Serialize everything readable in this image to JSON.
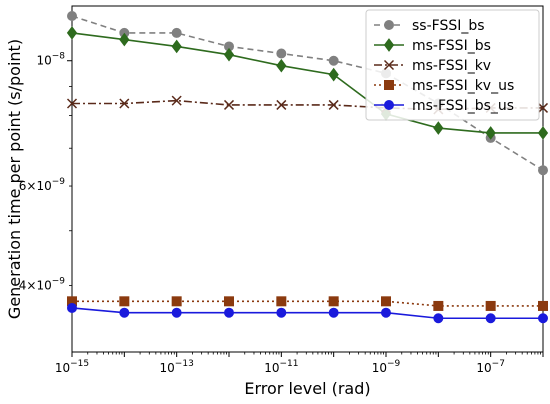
{
  "chart_data": {
    "type": "line",
    "title": "",
    "xlabel": "Error level (rad)",
    "ylabel": "Generation time per point (s/point)",
    "xscale": "log",
    "yscale": "log",
    "xlim": [
      1e-15,
      1e-06
    ],
    "ylim": [
      3.05e-09,
      1.25e-08
    ],
    "grid": false,
    "legend_position": "top-right",
    "x": [
      1e-15,
      1e-14,
      1e-13,
      1e-12,
      1e-11,
      1e-10,
      1e-09,
      1e-08,
      1e-07,
      1e-06
    ],
    "x_ticks": [
      {
        "base": "10",
        "exp": "−15",
        "value": 1e-15
      },
      {
        "base": "10",
        "exp": "−13",
        "value": 1e-13
      },
      {
        "base": "10",
        "exp": "−11",
        "value": 1e-11
      },
      {
        "base": "10",
        "exp": "−9",
        "value": 1e-09
      },
      {
        "base": "10",
        "exp": "−7",
        "value": 1e-07
      }
    ],
    "y_ticks": [
      {
        "mant": "10",
        "exp": "−8",
        "value": 1e-08
      },
      {
        "mant": "6×10",
        "exp": "−9",
        "value": 6e-09
      },
      {
        "mant": "4×10",
        "exp": "−9",
        "value": 4e-09
      }
    ],
    "series": [
      {
        "name": "ss-FSSI_bs",
        "color": "#808080",
        "marker": "circle",
        "dash": "6,4",
        "values": [
          1.2e-08,
          1.12e-08,
          1.12e-08,
          1.06e-08,
          1.03e-08,
          1e-08,
          9.5e-09,
          8.4e-09,
          7.3e-09,
          6.4e-09
        ]
      },
      {
        "name": "ms-FSSI_bs",
        "color": "#2e6b1e",
        "marker": "diamond",
        "dash": "",
        "values": [
          1.12e-08,
          1.09e-08,
          1.06e-08,
          1.025e-08,
          9.8e-09,
          9.45e-09,
          8.05e-09,
          7.6e-09,
          7.45e-09,
          7.45e-09
        ]
      },
      {
        "name": "ms-FSSI_kv",
        "color": "#5a2a1a",
        "marker": "x",
        "dash": "8,3,2,3",
        "values": [
          8.4e-09,
          8.4e-09,
          8.5e-09,
          8.35e-09,
          8.35e-09,
          8.35e-09,
          8.25e-09,
          8.2e-09,
          8.25e-09,
          8.25e-09
        ]
      },
      {
        "name": "ms-FSSI_kv_us",
        "color": "#8b3a0f",
        "marker": "square",
        "dash": "2,3",
        "values": [
          3.75e-09,
          3.75e-09,
          3.75e-09,
          3.75e-09,
          3.75e-09,
          3.75e-09,
          3.75e-09,
          3.68e-09,
          3.68e-09,
          3.68e-09
        ]
      },
      {
        "name": "ms-FSSI_bs_us",
        "color": "#1a1adc",
        "marker": "circle",
        "dash": "",
        "values": [
          3.65e-09,
          3.58e-09,
          3.58e-09,
          3.58e-09,
          3.58e-09,
          3.58e-09,
          3.58e-09,
          3.5e-09,
          3.5e-09,
          3.5e-09
        ]
      }
    ]
  }
}
